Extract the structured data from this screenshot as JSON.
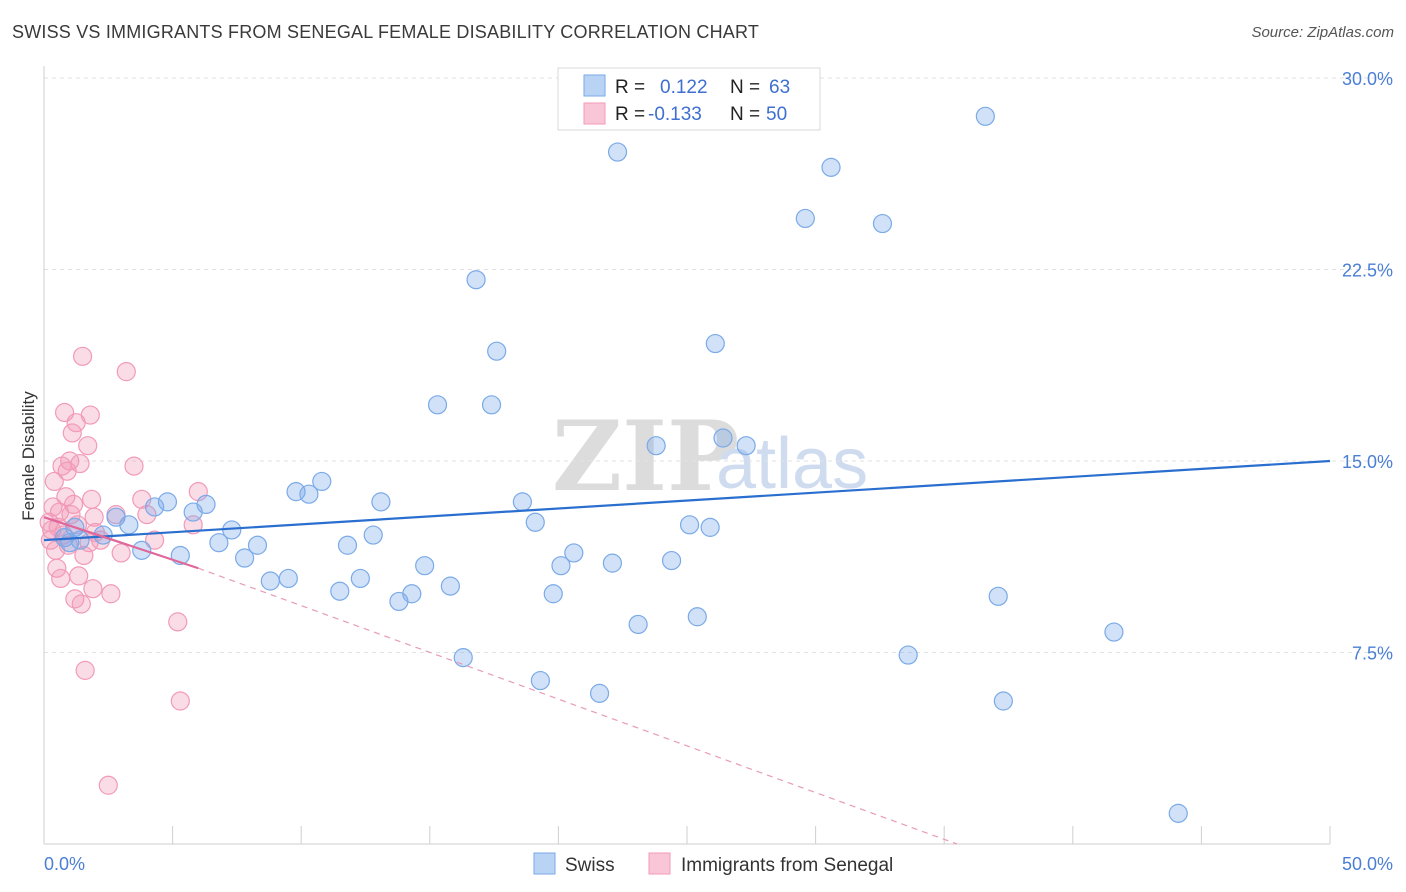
{
  "header": {
    "title": "SWISS VS IMMIGRANTS FROM SENEGAL FEMALE DISABILITY CORRELATION CHART",
    "source": "Source: ZipAtlas.com"
  },
  "legend": {
    "r_label": "R =",
    "n_label": "N =",
    "swiss": {
      "r": "0.122",
      "n": "63"
    },
    "senegal": {
      "r": "-0.133",
      "n": "50"
    }
  },
  "watermark": {
    "zip": "ZIP",
    "atlas": "atlas"
  },
  "chart_data": {
    "type": "scatter",
    "title": "SWISS VS IMMIGRANTS FROM SENEGAL FEMALE DISABILITY CORRELATION CHART",
    "xlabel": "",
    "ylabel": "Female Disability",
    "xlim": [
      0,
      50
    ],
    "ylim": [
      0,
      30
    ],
    "x_tick_labels": [
      "0.0%",
      "50.0%"
    ],
    "y_ticks": [
      7.5,
      15.0,
      22.5,
      30.0
    ],
    "y_tick_labels": [
      "7.5%",
      "15.0%",
      "22.5%",
      "30.0%"
    ],
    "grid": true,
    "colors": {
      "swiss": "#7aaae8",
      "senegal": "#f29ab8",
      "swiss_line": "#2a6fcf",
      "senegal_line": "#e0679a"
    },
    "series": [
      {
        "name": "Swiss",
        "r": 0.122,
        "n": 63,
        "trend": {
          "x": [
            0,
            50
          ],
          "y": [
            11.9,
            15.0
          ]
        },
        "points": [
          [
            0.8,
            12.0
          ],
          [
            1.0,
            11.8
          ],
          [
            1.2,
            12.4
          ],
          [
            1.4,
            11.9
          ],
          [
            2.3,
            12.1
          ],
          [
            2.8,
            12.8
          ],
          [
            3.3,
            12.5
          ],
          [
            3.8,
            11.5
          ],
          [
            4.3,
            13.2
          ],
          [
            4.8,
            13.4
          ],
          [
            5.3,
            11.3
          ],
          [
            5.8,
            13.0
          ],
          [
            6.3,
            13.3
          ],
          [
            6.8,
            11.8
          ],
          [
            7.3,
            12.3
          ],
          [
            7.8,
            11.2
          ],
          [
            8.3,
            11.7
          ],
          [
            8.8,
            10.3
          ],
          [
            9.5,
            10.4
          ],
          [
            9.8,
            13.8
          ],
          [
            10.3,
            13.7
          ],
          [
            10.8,
            14.2
          ],
          [
            11.5,
            9.9
          ],
          [
            11.8,
            11.7
          ],
          [
            12.3,
            10.4
          ],
          [
            12.8,
            12.1
          ],
          [
            13.1,
            13.4
          ],
          [
            13.8,
            9.5
          ],
          [
            14.3,
            9.8
          ],
          [
            14.8,
            10.9
          ],
          [
            15.3,
            17.2
          ],
          [
            15.8,
            10.1
          ],
          [
            16.3,
            7.3
          ],
          [
            16.8,
            22.1
          ],
          [
            17.4,
            17.2
          ],
          [
            17.6,
            19.3
          ],
          [
            18.6,
            13.4
          ],
          [
            19.1,
            12.6
          ],
          [
            19.3,
            6.4
          ],
          [
            19.8,
            9.8
          ],
          [
            20.1,
            10.9
          ],
          [
            20.6,
            11.4
          ],
          [
            21.6,
            5.9
          ],
          [
            22.1,
            11.0
          ],
          [
            22.3,
            27.1
          ],
          [
            23.1,
            8.6
          ],
          [
            23.8,
            15.6
          ],
          [
            24.4,
            11.1
          ],
          [
            25.1,
            12.5
          ],
          [
            25.4,
            8.9
          ],
          [
            25.9,
            12.4
          ],
          [
            26.1,
            19.6
          ],
          [
            26.4,
            15.9
          ],
          [
            27.3,
            15.6
          ],
          [
            29.6,
            24.5
          ],
          [
            30.6,
            26.5
          ],
          [
            32.6,
            24.3
          ],
          [
            33.6,
            7.4
          ],
          [
            36.6,
            28.5
          ],
          [
            37.1,
            9.7
          ],
          [
            37.3,
            5.6
          ],
          [
            41.6,
            8.3
          ],
          [
            44.1,
            1.2
          ]
        ]
      },
      {
        "name": "Immigrants from Senegal",
        "r": -0.133,
        "n": 50,
        "trend": {
          "x": [
            0,
            6.0
          ],
          "y": [
            12.8,
            10.8
          ]
        },
        "trend_ext": {
          "x": [
            6.0,
            35.5
          ],
          "y": [
            10.8,
            0.0
          ]
        },
        "points": [
          [
            0.2,
            12.6
          ],
          [
            0.25,
            11.9
          ],
          [
            0.3,
            12.3
          ],
          [
            0.35,
            13.2
          ],
          [
            0.4,
            14.2
          ],
          [
            0.45,
            11.5
          ],
          [
            0.5,
            10.8
          ],
          [
            0.55,
            12.4
          ],
          [
            0.6,
            13.0
          ],
          [
            0.65,
            10.4
          ],
          [
            0.7,
            14.8
          ],
          [
            0.75,
            12.1
          ],
          [
            0.8,
            16.9
          ],
          [
            0.85,
            13.6
          ],
          [
            0.9,
            14.6
          ],
          [
            0.95,
            11.7
          ],
          [
            1.0,
            15.0
          ],
          [
            1.05,
            12.9
          ],
          [
            1.1,
            16.1
          ],
          [
            1.15,
            13.3
          ],
          [
            1.2,
            9.6
          ],
          [
            1.25,
            16.5
          ],
          [
            1.3,
            12.5
          ],
          [
            1.35,
            10.5
          ],
          [
            1.4,
            14.9
          ],
          [
            1.45,
            9.4
          ],
          [
            1.5,
            19.1
          ],
          [
            1.55,
            11.3
          ],
          [
            1.6,
            6.8
          ],
          [
            1.7,
            15.6
          ],
          [
            1.75,
            11.8
          ],
          [
            1.8,
            16.8
          ],
          [
            1.85,
            13.5
          ],
          [
            1.9,
            10.0
          ],
          [
            1.95,
            12.8
          ],
          [
            2.0,
            12.2
          ],
          [
            2.2,
            11.9
          ],
          [
            2.5,
            2.3
          ],
          [
            2.6,
            9.8
          ],
          [
            2.8,
            12.9
          ],
          [
            3.0,
            11.4
          ],
          [
            3.2,
            18.5
          ],
          [
            3.5,
            14.8
          ],
          [
            3.8,
            13.5
          ],
          [
            4.0,
            12.9
          ],
          [
            4.3,
            11.9
          ],
          [
            5.2,
            8.7
          ],
          [
            5.3,
            5.6
          ],
          [
            5.8,
            12.5
          ],
          [
            6.0,
            13.8
          ]
        ]
      }
    ]
  },
  "bottom_legend": {
    "swiss": "Swiss",
    "senegal": "Immigrants from Senegal"
  }
}
